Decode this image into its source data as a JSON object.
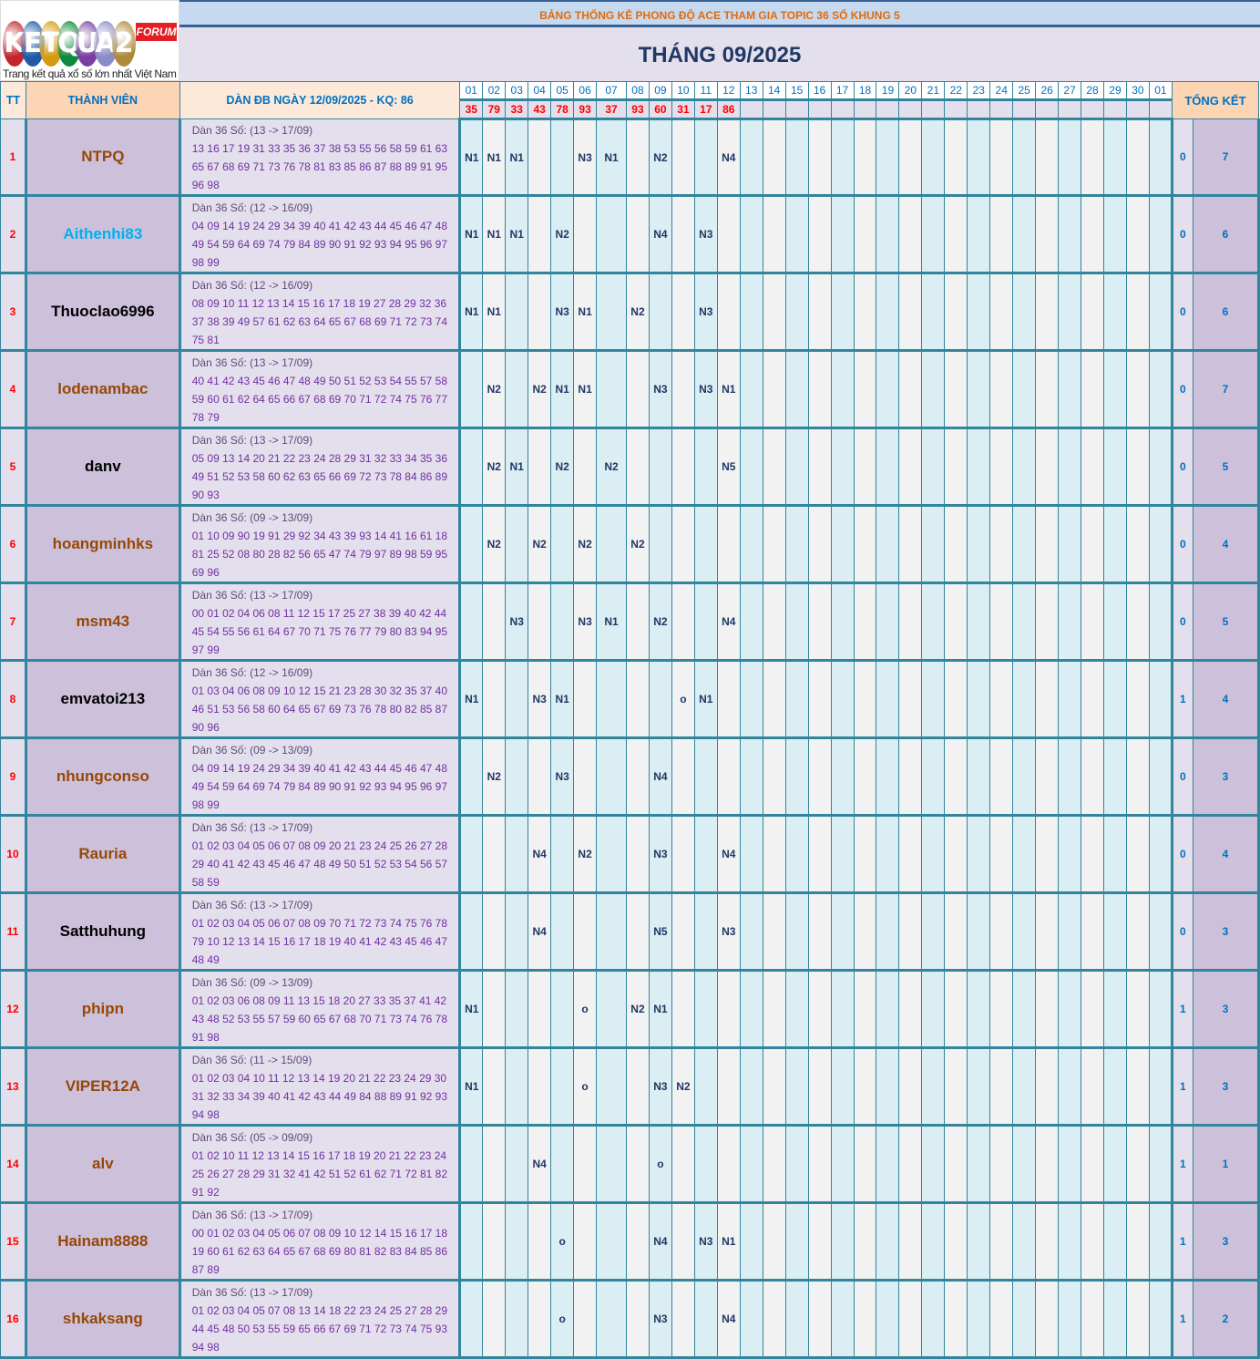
{
  "logo": {
    "letters": [
      "K",
      "E",
      "T",
      "Q",
      "U",
      "A",
      "2"
    ],
    "colors": [
      "#c1272d",
      "#1e5aa8",
      "#d69a12",
      "#0d8a3c",
      "#7a3fa0",
      "#8a8cc8",
      "#b08a3a"
    ],
    "badge": "FORUM",
    "caption": "Trang kết quả xổ số lớn nhất Việt Nam"
  },
  "title": "BẢNG THỐNG KÊ PHONG ĐỘ ACE THAM GIA TOPIC 36 SỐ KHUNG 5",
  "month": "THÁNG 09/2025",
  "headers": {
    "tt": "TT",
    "member": "THÀNH VIÊN",
    "dan": "DÀN ĐB NGÀY 12/09/2025 - KQ: 86",
    "total": "TỔNG KẾT"
  },
  "days": [
    "01",
    "02",
    "03",
    "04",
    "05",
    "06",
    "07",
    "08",
    "09",
    "10",
    "11",
    "12",
    "13",
    "14",
    "15",
    "16",
    "17",
    "18",
    "19",
    "20",
    "21",
    "22",
    "23",
    "24",
    "25",
    "26",
    "27",
    "28",
    "29",
    "30",
    "01"
  ],
  "results": [
    "35",
    "79",
    "33",
    "43",
    "78",
    "93",
    "37",
    "93",
    "60",
    "31",
    "17",
    "86",
    "",
    "",
    "",
    "",
    "",
    "",
    "",
    "",
    "",
    "",
    "",
    "",
    "",
    "",
    "",
    "",
    "",
    "",
    ""
  ],
  "colors": {
    "brown": "#974706",
    "black": "#000000",
    "cyan": "#00b0f0"
  },
  "rows": [
    {
      "tt": "1",
      "name": "NTPQ",
      "color": "brown",
      "range": "Dàn 36 Số: (13 -> 17/09)",
      "numbers": "13 16 17 19 31 33 35 36 37 38 53 55 56 58 59 61 63 65 67 68 69 71 73 76 78 81 83 85 86 87 88 89 91 95 96 98",
      "marks": [
        "N1",
        "N1",
        "N1",
        "",
        "",
        "N3",
        "N1",
        "",
        "N2",
        "",
        "",
        "N4"
      ],
      "c1": "0",
      "c2": "7"
    },
    {
      "tt": "2",
      "name": "Aithenhi83",
      "color": "cyan",
      "range": "Dàn 36 Số: (12 -> 16/09)",
      "numbers": "04 09 14 19 24 29 34 39 40 41 42 43 44 45 46 47 48 49 54 59 64 69 74 79 84 89 90 91 92 93 94 95 96 97 98 99",
      "marks": [
        "N1",
        "N1",
        "N1",
        "",
        "N2",
        "",
        "",
        "",
        "N4",
        "",
        "N3",
        ""
      ],
      "c1": "0",
      "c2": "6"
    },
    {
      "tt": "3",
      "name": "Thuoclao6996",
      "color": "black",
      "range": "Dàn 36 Số: (12 -> 16/09)",
      "numbers": "08 09 10 11 12 13 14 15 16 17 18 19 27 28 29 32 36 37 38 39 49 57 61 62 63 64 65 67 68 69 71 72 73 74 75 81",
      "marks": [
        "N1",
        "N1",
        "",
        "",
        "N3",
        "N1",
        "",
        "N2",
        "",
        "",
        "N3",
        ""
      ],
      "c1": "0",
      "c2": "6"
    },
    {
      "tt": "4",
      "name": "lodenambac",
      "color": "brown",
      "range": "Dàn 36 Số: (13 -> 17/09)",
      "numbers": "40 41 42 43 45 46 47 48 49 50 51 52 53 54 55 57 58 59 60 61 62 64 65 66 67 68 69 70 71 72 74 75 76 77 78 79",
      "marks": [
        "",
        "N2",
        "",
        "N2",
        "N1",
        "N1",
        "",
        "",
        "N3",
        "",
        "N3",
        "N1"
      ],
      "c1": "0",
      "c2": "7"
    },
    {
      "tt": "5",
      "name": "danv",
      "color": "black",
      "range": "Dàn 36 Số: (13 -> 17/09)",
      "numbers": "05 09 13 14 20 21 22 23 24 28 29 31 32 33 34 35 36 49 51 52 53 58 60 62 63 65 66 69 72 73 78 84 86 89 90 93",
      "marks": [
        "",
        "N2",
        "N1",
        "",
        "N2",
        "",
        "N2",
        "",
        "",
        "",
        "",
        "N5"
      ],
      "c1": "0",
      "c2": "5"
    },
    {
      "tt": "6",
      "name": "hoangminhks",
      "color": "brown",
      "range": "Dàn 36 Số: (09 -> 13/09)",
      "numbers": "01 10 09 90 19 91 29 92 34 43 39 93 14 41 16 61 18 81 25 52 08 80 28 82 56 65 47 74 79 97 89 98 59 95 69 96",
      "marks": [
        "",
        "N2",
        "",
        "N2",
        "",
        "N2",
        "",
        "N2",
        "",
        "",
        "",
        ""
      ],
      "c1": "0",
      "c2": "4"
    },
    {
      "tt": "7",
      "name": "msm43",
      "color": "brown",
      "range": "Dàn 36 Số: (13 -> 17/09)",
      "numbers": "00 01 02 04 06 08 11 12 15 17 25 27 38 39 40 42 44 45 54 55 56 61 64 67 70 71 75 76 77 79 80 83 94 95 97 99",
      "marks": [
        "",
        "",
        "N3",
        "",
        "",
        "N3",
        "N1",
        "",
        "N2",
        "",
        "",
        "N4"
      ],
      "c1": "0",
      "c2": "5"
    },
    {
      "tt": "8",
      "name": "emvatoi213",
      "color": "black",
      "range": "Dàn 36 Số: (12 -> 16/09)",
      "numbers": "01 03 04 06 08 09 10 12 15 21 23 28 30 32 35 37 40 46 51 53 56 58 60 64 65 67 69 73 76 78 80 82 85 87 90 96",
      "marks": [
        "N1",
        "",
        "",
        "N3",
        "N1",
        "",
        "",
        "",
        "",
        "o",
        "N1",
        ""
      ],
      "c1": "1",
      "c2": "4"
    },
    {
      "tt": "9",
      "name": "nhungconso",
      "color": "brown",
      "range": "Dàn 36 Số: (09 -> 13/09)",
      "numbers": "04 09 14 19 24 29 34 39 40 41 42 43 44 45 46 47 48 49 54 59 64 69 74 79 84 89 90 91 92 93 94 95 96 97 98 99",
      "marks": [
        "",
        "N2",
        "",
        "",
        "N3",
        "",
        "",
        "",
        "N4",
        "",
        "",
        ""
      ],
      "c1": "0",
      "c2": "3"
    },
    {
      "tt": "10",
      "name": "Rauria",
      "color": "brown",
      "range": "Dàn 36 Số: (13 -> 17/09)",
      "numbers": "01 02 03 04 05 06 07 08 09 20 21 23 24 25 26 27 28 29 40 41 42 43 45 46 47 48 49 50 51 52 53 54 56 57 58 59",
      "marks": [
        "",
        "",
        "",
        "N4",
        "",
        "N2",
        "",
        "",
        "N3",
        "",
        "",
        "N4"
      ],
      "c1": "0",
      "c2": "4"
    },
    {
      "tt": "11",
      "name": "Satthuhung",
      "color": "black",
      "range": "Dàn 36 Số: (13 -> 17/09)",
      "numbers": "01 02 03 04 05 06 07 08 09 70 71 72 73 74 75 76 78 79 10 12 13 14 15 16 17 18 19 40 41 42 43 45 46 47 48 49",
      "marks": [
        "",
        "",
        "",
        "N4",
        "",
        "",
        "",
        "",
        "N5",
        "",
        "",
        "N3"
      ],
      "c1": "0",
      "c2": "3"
    },
    {
      "tt": "12",
      "name": "phipn",
      "color": "brown",
      "range": "Dàn 36 Số: (09 -> 13/09)",
      "numbers": "01 02 03 06 08 09 11 13 15 18 20 27 33 35 37 41 42 43 48 52 53 55 57 59 60 65 67 68 70 71 73 74 76 78 91 98",
      "marks": [
        "N1",
        "",
        "",
        "",
        "",
        "o",
        "",
        "N2",
        "N1",
        "",
        "",
        ""
      ],
      "c1": "1",
      "c2": "3"
    },
    {
      "tt": "13",
      "name": "VIPER12A",
      "color": "brown",
      "range": "Dàn 36 Số: (11 -> 15/09)",
      "numbers": "01 02 03 04 10 11 12 13 14 19 20 21 22 23 24 29 30 31 32 33 34 39 40 41 42 43 44 49 84 88 89 91 92 93 94 98",
      "marks": [
        "N1",
        "",
        "",
        "",
        "",
        "o",
        "",
        "",
        "N3",
        "N2",
        "",
        ""
      ],
      "c1": "1",
      "c2": "3"
    },
    {
      "tt": "14",
      "name": "alv",
      "color": "brown",
      "range": "Dàn 36 Số: (05 -> 09/09)",
      "numbers": "01 02 10 11 12 13 14 15 16 17 18 19 20 21 22 23 24 25 26 27 28 29 31 32 41 42 51 52 61 62 71 72 81 82 91 92",
      "marks": [
        "",
        "",
        "",
        "N4",
        "",
        "",
        "",
        "",
        "o",
        "",
        "",
        ""
      ],
      "c1": "1",
      "c2": "1"
    },
    {
      "tt": "15",
      "name": "Hainam8888",
      "color": "brown",
      "range": "Dàn 36 Số: (13 -> 17/09)",
      "numbers": "00 01 02 03 04 05 06 07 08 09 10 12 14 15 16 17 18 19 60 61 62 63 64 65 67 68 69 80 81 82 83 84 85 86 87 89",
      "marks": [
        "",
        "",
        "",
        "",
        "o",
        "",
        "",
        "",
        "N4",
        "",
        "N3",
        "N1"
      ],
      "c1": "1",
      "c2": "3"
    },
    {
      "tt": "16",
      "name": "shkaksang",
      "color": "brown",
      "range": "Dàn 36 Số: (13 -> 17/09)",
      "numbers": "01 02 03 04 05 07 08 13 14 18 22 23 24 25 27 28 29 44 45 48 50 53 55 59 65 66 67 69 71 72 73 74 75 93 94 98",
      "marks": [
        "",
        "",
        "",
        "",
        "o",
        "",
        "",
        "",
        "N3",
        "",
        "",
        "N4"
      ],
      "c1": "1",
      "c2": "2"
    }
  ]
}
